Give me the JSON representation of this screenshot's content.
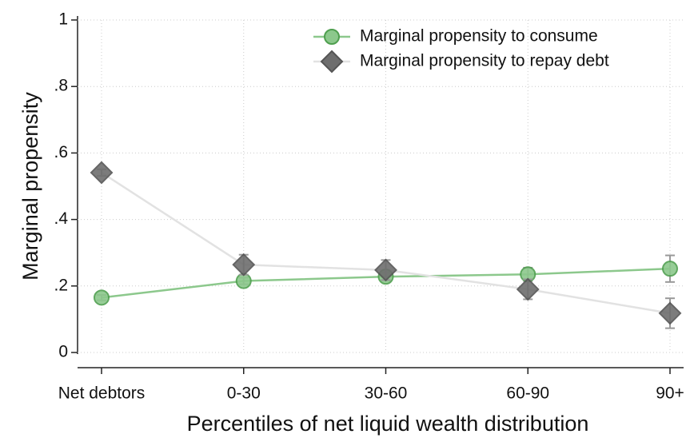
{
  "chart_data": {
    "type": "line",
    "x_label": "Percentiles of net liquid wealth distribution",
    "y_label": "Marginal propensity",
    "categories": [
      "Net debtors",
      "0-30",
      "30-60",
      "60-90",
      "90+"
    ],
    "series": [
      {
        "name": "Marginal propensity to consume",
        "color": "#8cc88c",
        "marker": "circle",
        "values": [
          0.165,
          0.215,
          0.228,
          0.235,
          0.252
        ],
        "errors": [
          0.008,
          0.01,
          0.012,
          0.02,
          0.04
        ]
      },
      {
        "name": "Marginal propensity to repay debt",
        "color": "#6e6e6e",
        "marker": "diamond",
        "values": [
          0.541,
          0.264,
          0.248,
          0.19,
          0.118
        ],
        "errors": [
          0.01,
          0.03,
          0.03,
          0.03,
          0.045
        ]
      }
    ],
    "ylim": [
      0,
      1
    ],
    "yticks": [
      0,
      {
        "value": 0.2,
        "label": ".2"
      },
      {
        "value": 0.4,
        "label": ".4"
      },
      {
        "value": 0.6,
        "label": ".6"
      },
      {
        "value": 0.8,
        "label": ".8"
      },
      1
    ],
    "grid": true,
    "legend": "top-right"
  }
}
